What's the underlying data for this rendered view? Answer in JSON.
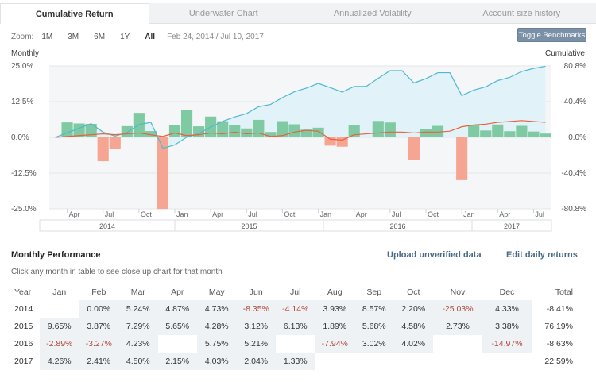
{
  "tabs": [
    {
      "label": "Cumulative Return",
      "active": true
    },
    {
      "label": "Underwater Chart",
      "active": false
    },
    {
      "label": "Annualized Volatility",
      "active": false
    },
    {
      "label": "Account size history",
      "active": false
    }
  ],
  "zoom": {
    "label": "Zoom:",
    "options": [
      "1M",
      "3M",
      "6M",
      "1Y",
      "All"
    ],
    "active": "All",
    "date_range": "Feb 24, 2014 / Jul 10, 2017"
  },
  "toggle_benchmarks": "Toggle Benchmarks",
  "chart": {
    "left_axis_title": "Monthly",
    "right_axis_title": "Cumulative",
    "left_ticks": [
      "25.0%",
      "12.5%",
      "0.0%",
      "-12.5%",
      "-25.0%"
    ],
    "right_ticks": [
      "80.8%",
      "40.4%",
      "0.0%",
      "-40.4%",
      "-80.8%"
    ],
    "month_ticks": [
      "Apr",
      "Jul",
      "Oct",
      "Jan",
      "Apr",
      "Jul",
      "Oct",
      "Jan",
      "Apr",
      "Jul",
      "Oct",
      "Jan",
      "Apr",
      "Jul"
    ],
    "year_labels": [
      "2014",
      "2015",
      "2016",
      "2017"
    ],
    "colors": {
      "positive": "#7fcaa2",
      "negative": "#f6a593",
      "cumulative": "#4db9d1",
      "cumulative_fill": "#dff2f7",
      "benchmark": "#e8613c"
    }
  },
  "chart_data": {
    "type": "bar",
    "ylim": [
      -25,
      25
    ],
    "y2lim": [
      -80.8,
      80.8
    ],
    "categories": [
      "2014-02",
      "2014-03",
      "2014-04",
      "2014-05",
      "2014-06",
      "2014-07",
      "2014-08",
      "2014-09",
      "2014-10",
      "2014-11",
      "2014-12",
      "2015-01",
      "2015-02",
      "2015-03",
      "2015-04",
      "2015-05",
      "2015-06",
      "2015-07",
      "2015-08",
      "2015-09",
      "2015-10",
      "2015-11",
      "2015-12",
      "2016-01",
      "2016-02",
      "2016-03",
      "2016-04",
      "2016-05",
      "2016-06",
      "2016-07",
      "2016-08",
      "2016-09",
      "2016-10",
      "2016-11",
      "2016-12",
      "2017-01",
      "2017-02",
      "2017-03",
      "2017-04",
      "2017-05",
      "2017-06",
      "2017-07"
    ],
    "series": [
      {
        "values": [
          0.0,
          5.24,
          4.87,
          4.73,
          -8.35,
          -4.14,
          3.93,
          8.57,
          2.2,
          -25.03,
          4.33,
          9.65,
          3.87,
          7.29,
          5.65,
          4.28,
          3.12,
          6.13,
          1.89,
          5.68,
          4.58,
          2.73,
          3.38,
          -2.89,
          -3.27,
          4.23,
          0,
          5.75,
          5.21,
          0,
          -7.94,
          3.02,
          4.02,
          0,
          -14.97,
          4.26,
          2.41,
          4.5,
          2.15,
          4.03,
          2.04,
          1.33
        ]
      }
    ],
    "cumulative_y2": [
      0,
      5.2,
      10.3,
      15.5,
      5.9,
      1.5,
      5.5,
      14.5,
      17.0,
      -12.3,
      -8.5,
      0.3,
      4.2,
      11.8,
      18.1,
      23.1,
      26.9,
      34.7,
      37.2,
      45.0,
      51.6,
      55.7,
      61.0,
      56.3,
      51.2,
      57.6,
      57.6,
      66.7,
      75.4,
      75.4,
      61.5,
      66.4,
      73.1,
      73.1,
      47.2,
      53.5,
      57.2,
      64.2,
      67.8,
      74.5,
      78.0,
      80.4
    ],
    "benchmark_y2": [
      0,
      1,
      2,
      3,
      4,
      3,
      4,
      5,
      3,
      1,
      5,
      2,
      3,
      5,
      4,
      6,
      4,
      5,
      1,
      2,
      6,
      8,
      7,
      -2,
      -3,
      3,
      4,
      5,
      6,
      6,
      5,
      6,
      6,
      7,
      12,
      14,
      15,
      17,
      18,
      19,
      18,
      17
    ]
  },
  "performance": {
    "title": "Monthly Performance",
    "upload_link": "Upload unverified data",
    "edit_link": "Edit daily returns",
    "hint": "Click any month in table to see close up chart for that month",
    "headers": [
      "Year",
      "Jan",
      "Feb",
      "Mar",
      "Apr",
      "May",
      "Jun",
      "Jul",
      "Aug",
      "Sep",
      "Oct",
      "Nov",
      "Dec",
      "Total"
    ],
    "rows": [
      {
        "year": "2014",
        "months": [
          "",
          "0.00%",
          "5.24%",
          "4.87%",
          "4.73%",
          "-8.35%",
          "-4.14%",
          "3.93%",
          "8.57%",
          "2.20%",
          "-25.03%",
          "4.33%"
        ],
        "total": "-8.41%"
      },
      {
        "year": "2015",
        "months": [
          "9.65%",
          "3.87%",
          "7.29%",
          "5.65%",
          "4.28%",
          "3.12%",
          "6.13%",
          "1.89%",
          "5.68%",
          "4.58%",
          "2.73%",
          "3.38%"
        ],
        "total": "76.19%"
      },
      {
        "year": "2016",
        "months": [
          "-2.89%",
          "-3.27%",
          "4.23%",
          "",
          "5.75%",
          "5.21%",
          "",
          "-7.94%",
          "3.02%",
          "4.02%",
          "",
          "-14.97%"
        ],
        "total": "-8.63%"
      },
      {
        "year": "2017",
        "months": [
          "4.26%",
          "2.41%",
          "4.50%",
          "2.15%",
          "4.03%",
          "2.04%",
          "1.33%",
          "",
          "",
          "",
          "",
          ""
        ],
        "total": "22.59%"
      }
    ]
  }
}
